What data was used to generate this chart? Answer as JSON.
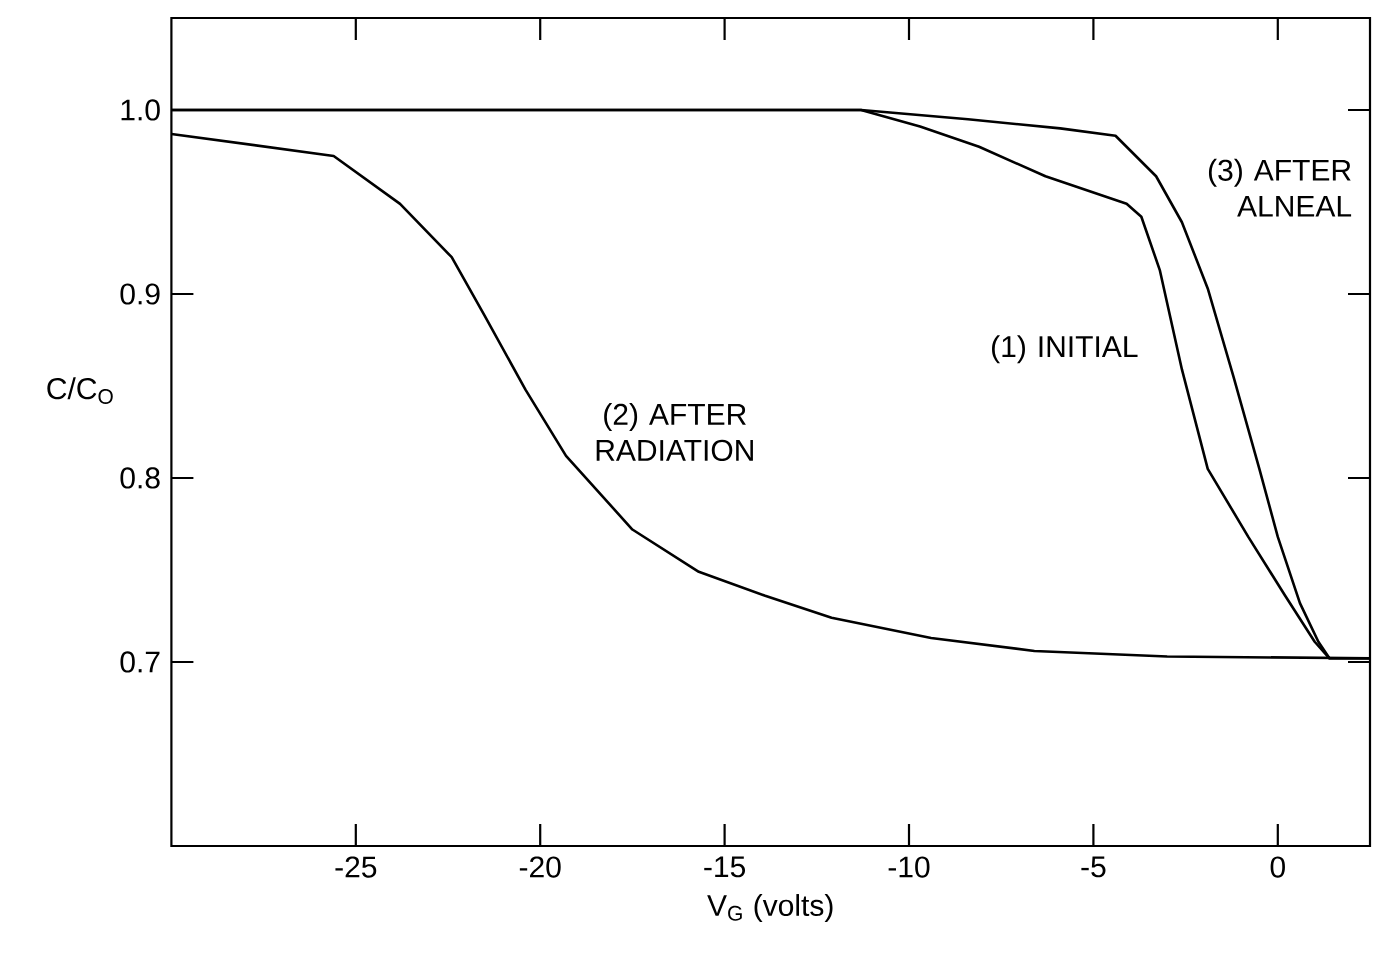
{
  "chart_data": {
    "type": "line",
    "xlabel": "V$_{G}$ (volts)",
    "ylabel": "C/C$_{O}$",
    "xlim": [
      -30,
      2.5
    ],
    "ylim": [
      0.6,
      1.05
    ],
    "xticks": [
      -25,
      -20,
      -15,
      -10,
      -5,
      0
    ],
    "yticks": [
      0.7,
      0.8,
      0.9,
      {
        "value": 1,
        "label": "1.0"
      }
    ],
    "grid": false,
    "line_style": "solid",
    "series": [
      {
        "color": "#000000",
        "x": [
          -30,
          -20,
          -11.3,
          -9.7,
          -8.1,
          -6.3,
          -4.1,
          -3.7,
          -3.2,
          -2.6,
          -1.9,
          -0.8,
          0.2,
          1.0,
          1.4,
          2.5
        ],
        "values": [
          1.0,
          1.0,
          1.0,
          0.991,
          0.98,
          0.964,
          0.949,
          0.942,
          0.913,
          0.859,
          0.805,
          0.768,
          0.736,
          0.711,
          0.702,
          0.702
        ]
      },
      {
        "color": "#000000",
        "x": [
          -30,
          -25.6,
          -23.8,
          -22.4,
          -21.5,
          -20.4,
          -19.3,
          -17.5,
          -15.7,
          -13.9,
          -12.1,
          -9.4,
          -6.6,
          -3.0,
          2.5
        ],
        "values": [
          0.987,
          0.975,
          0.949,
          0.92,
          0.888,
          0.848,
          0.812,
          0.772,
          0.749,
          0.736,
          0.724,
          0.713,
          0.706,
          0.703,
          0.702
        ]
      },
      {
        "color": "#000000",
        "x": [
          -30,
          -20,
          -11.3,
          -8.4,
          -5.9,
          -4.4,
          -3.3,
          -2.6,
          -1.9,
          -1.2,
          -0.5,
          0,
          0.6,
          1.1,
          1.4,
          2.5
        ],
        "values": [
          1.0,
          1.0,
          1.0,
          0.995,
          0.99,
          0.986,
          0.964,
          0.939,
          0.903,
          0.855,
          0.805,
          0.768,
          0.732,
          0.711,
          0.702,
          0.702
        ]
      }
    ],
    "annotations": [
      "(1) INITIAL",
      "(2) AFTER RADIATION",
      "(3) AFTER ALNEAL"
    ]
  }
}
